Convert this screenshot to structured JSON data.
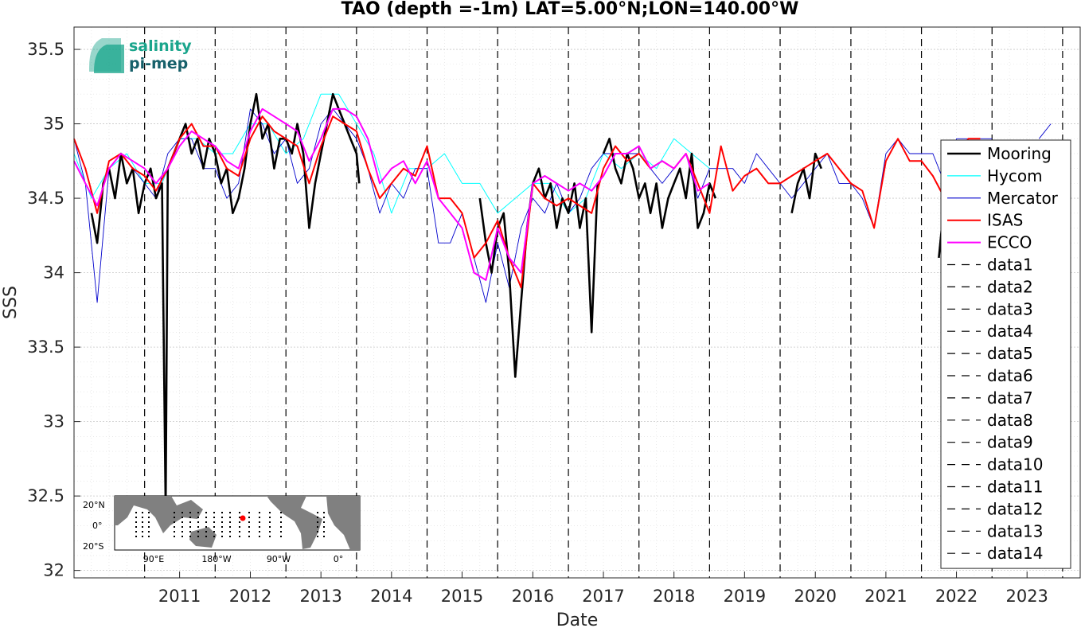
{
  "logo": {
    "line1": "salinity",
    "line2": "pi-mep",
    "color": "#1aa58c"
  },
  "chart_data": {
    "type": "line",
    "title": "TAO (depth =-1m) LAT=5.00°N;LON=140.00°W",
    "xlabel": "Date",
    "ylabel": "SSS",
    "xlim": [
      "2010-01-01",
      "2024-04-01"
    ],
    "ylim": [
      31.95,
      35.65
    ],
    "grid": true,
    "minor_grid": true,
    "x_ticks": [
      "2011",
      "2012",
      "2013",
      "2014",
      "2015",
      "2016",
      "2017",
      "2018",
      "2019",
      "2020",
      "2021",
      "2022",
      "2023"
    ],
    "y_ticks": [
      "32",
      "32.5",
      "33",
      "33.5",
      "34",
      "34.5",
      "35",
      "35.5"
    ],
    "legend_position": "right",
    "vertical_markers": [
      {
        "name": "data1",
        "x": "2011-01-01"
      },
      {
        "name": "data2",
        "x": "2012-01-01"
      },
      {
        "name": "data3",
        "x": "2013-01-01"
      },
      {
        "name": "data4",
        "x": "2014-01-01"
      },
      {
        "name": "data5",
        "x": "2015-01-01"
      },
      {
        "name": "data6",
        "x": "2016-01-01"
      },
      {
        "name": "data7",
        "x": "2017-01-01"
      },
      {
        "name": "data8",
        "x": "2018-01-01"
      },
      {
        "name": "data9",
        "x": "2019-01-01"
      },
      {
        "name": "data10",
        "x": "2020-01-01"
      },
      {
        "name": "data11",
        "x": "2021-01-01"
      },
      {
        "name": "data12",
        "x": "2022-01-01"
      },
      {
        "name": "data13",
        "x": "2023-01-01"
      },
      {
        "name": "data14",
        "x": "2024-01-01"
      }
    ],
    "series": [
      {
        "name": "Mooring",
        "color": "#000000",
        "width": 2.6,
        "x": [
          "2010-04-01",
          "2010-05-01",
          "2010-06-01",
          "2010-07-01",
          "2010-08-01",
          "2010-09-01",
          "2010-10-01",
          "2010-11-01",
          "2010-12-01",
          "2011-01-01",
          "2011-02-01",
          "2011-03-01",
          "2011-04-01",
          "2011-04-20",
          "2011-05-01",
          "2011-06-01",
          "2011-07-01",
          "2011-08-01",
          "2011-09-01",
          "2011-10-01",
          "2011-11-01",
          "2011-12-01",
          "2012-01-01",
          "2012-02-01",
          "2012-03-01",
          "2012-04-01",
          "2012-05-01",
          "2012-06-01",
          "2012-07-01",
          "2012-08-01",
          "2012-09-01",
          "2012-10-01",
          "2012-11-01",
          "2012-12-01",
          "2013-01-01",
          "2013-02-01",
          "2013-03-01",
          "2013-04-01",
          "2013-05-01",
          "2013-06-01",
          "2013-07-01",
          "2013-08-01",
          "2013-09-01",
          "2013-10-01",
          "2013-11-01",
          "2013-12-01",
          "2014-01-01",
          "2014-01-15",
          null,
          "2015-10-01",
          "2015-11-01",
          "2015-12-01",
          "2016-01-01",
          "2016-02-01",
          "2016-03-01",
          "2016-04-01",
          "2016-05-01",
          "2016-06-01",
          "2016-07-01",
          "2016-08-01",
          "2016-09-01",
          "2016-10-01",
          "2016-11-01",
          "2016-12-01",
          "2017-01-01",
          "2017-02-01",
          "2017-03-01",
          "2017-04-01",
          "2017-05-01",
          "2017-06-01",
          null,
          "2017-07-01",
          "2017-08-01",
          "2017-09-01",
          "2017-10-01",
          "2017-11-01",
          "2017-12-01",
          "2018-01-01",
          "2018-02-01",
          "2018-03-01",
          "2018-04-01",
          "2018-05-01",
          "2018-06-01",
          "2018-07-01",
          "2018-08-01",
          "2018-09-01",
          "2018-10-01",
          "2018-11-01",
          "2018-12-01",
          "2019-01-01",
          "2019-02-01",
          null,
          "2020-03-01",
          "2020-04-01",
          "2020-05-01",
          "2020-06-01",
          "2020-07-01",
          "2020-08-01",
          null,
          "2022-04-01",
          "2022-05-01",
          "2022-06-01"
        ],
        "y": [
          34.4,
          34.2,
          34.6,
          34.7,
          34.5,
          34.8,
          34.6,
          34.7,
          34.4,
          34.6,
          34.7,
          34.5,
          34.6,
          32.4,
          34.7,
          34.8,
          34.9,
          35.0,
          34.8,
          34.9,
          34.7,
          34.9,
          34.8,
          34.6,
          34.7,
          34.4,
          34.5,
          34.7,
          35.0,
          35.2,
          34.9,
          35.0,
          34.7,
          34.9,
          34.9,
          34.8,
          35.0,
          34.8,
          34.3,
          34.6,
          34.8,
          35.0,
          35.2,
          35.1,
          35.0,
          34.9,
          34.8,
          34.6,
          null,
          34.5,
          34.2,
          34.0,
          34.3,
          34.4,
          34.0,
          33.3,
          33.8,
          34.3,
          34.6,
          34.7,
          34.5,
          34.6,
          34.3,
          34.5,
          34.4,
          34.6,
          34.3,
          34.5,
          33.6,
          34.6,
          null,
          34.8,
          34.9,
          34.7,
          34.6,
          34.8,
          34.7,
          34.5,
          34.6,
          34.4,
          34.6,
          34.3,
          34.5,
          34.6,
          34.7,
          34.5,
          34.8,
          34.3,
          34.4,
          34.6,
          34.5,
          null,
          34.4,
          34.6,
          34.7,
          34.5,
          34.8,
          34.7,
          null,
          34.1,
          34.5,
          34.6
        ]
      },
      {
        "name": "Hycom",
        "color": "#00ffff",
        "width": 1,
        "x": [
          "2010-01-01",
          "2010-04-01",
          "2010-07-01",
          "2010-10-01",
          "2011-01-01",
          "2011-04-01",
          "2011-07-01",
          "2011-10-01",
          "2012-01-01",
          "2012-04-01",
          "2012-07-01",
          "2012-10-01",
          "2013-01-01",
          "2013-04-01",
          "2013-07-01",
          "2013-10-01",
          "2014-01-01",
          "2014-04-01",
          "2014-07-01",
          "2014-10-01",
          "2015-01-01",
          "2015-04-01",
          "2015-07-01",
          "2015-10-01",
          "2016-01-01",
          "2016-04-01",
          "2016-07-01",
          "2016-10-01",
          "2017-01-01",
          "2017-04-01",
          "2017-07-01",
          "2017-10-01",
          "2018-01-01",
          "2018-04-01",
          "2018-07-01",
          "2018-10-01",
          "2019-01-01"
        ],
        "y": [
          34.8,
          34.5,
          34.7,
          34.8,
          34.6,
          34.6,
          34.9,
          34.9,
          34.8,
          34.8,
          35.0,
          35.0,
          34.8,
          34.9,
          35.2,
          35.2,
          35.0,
          34.8,
          34.4,
          34.7,
          34.7,
          34.8,
          34.6,
          34.6,
          34.4,
          34.5,
          34.6,
          34.6,
          34.4,
          34.5,
          34.8,
          34.7,
          34.8,
          34.7,
          34.9,
          34.8,
          34.7
        ]
      },
      {
        "name": "Mercator",
        "color": "#0000cc",
        "width": 0.9,
        "x": [
          "2010-01-01",
          "2010-03-01",
          "2010-05-01",
          "2010-07-01",
          "2010-09-01",
          "2010-11-01",
          "2011-01-01",
          "2011-03-01",
          "2011-05-01",
          "2011-07-01",
          "2011-09-01",
          "2011-11-01",
          "2012-01-01",
          "2012-03-01",
          "2012-05-01",
          "2012-07-01",
          "2012-09-01",
          "2012-11-01",
          "2013-01-01",
          "2013-03-01",
          "2013-05-01",
          "2013-07-01",
          "2013-09-01",
          "2013-11-01",
          "2014-01-01",
          "2014-03-01",
          "2014-05-01",
          "2014-07-01",
          "2014-09-01",
          "2014-11-01",
          "2015-01-01",
          "2015-03-01",
          "2015-05-01",
          "2015-07-01",
          "2015-09-01",
          "2015-11-01",
          "2016-01-01",
          "2016-03-01",
          "2016-05-01",
          "2016-07-01",
          "2016-09-01",
          "2016-11-01",
          "2017-01-01",
          "2017-03-01",
          "2017-05-01",
          "2017-07-01",
          "2017-09-01",
          "2017-11-01",
          "2018-01-01",
          "2018-03-01",
          "2018-05-01",
          "2018-07-01",
          "2018-09-01",
          "2018-11-01",
          "2019-01-01",
          "2019-03-01",
          "2019-05-01",
          "2019-07-01",
          "2019-09-01",
          "2019-11-01",
          "2020-01-01",
          "2020-03-01",
          "2020-05-01",
          "2020-07-01",
          "2020-09-01",
          "2020-11-01",
          "2021-01-01",
          "2021-03-01",
          "2021-05-01",
          "2021-07-01",
          "2021-09-01",
          "2021-11-01",
          "2022-01-01",
          "2022-03-01",
          "2022-05-01",
          "2022-07-01",
          "2022-09-01",
          "2022-11-01",
          "2023-01-01",
          "2023-03-01",
          "2023-05-01",
          "2023-07-01",
          "2023-09-01",
          "2023-11-01"
        ],
        "y": [
          34.9,
          34.6,
          33.8,
          34.7,
          34.8,
          34.7,
          34.6,
          34.5,
          34.8,
          34.9,
          34.9,
          34.7,
          34.7,
          34.5,
          34.6,
          35.1,
          35.0,
          34.8,
          34.9,
          34.6,
          34.7,
          35.0,
          35.1,
          35.0,
          34.9,
          34.7,
          34.4,
          34.6,
          34.5,
          34.7,
          34.7,
          34.2,
          34.2,
          34.4,
          34.1,
          33.8,
          34.2,
          33.9,
          34.3,
          34.5,
          34.4,
          34.6,
          34.4,
          34.5,
          34.7,
          34.8,
          34.8,
          34.8,
          34.8,
          34.7,
          34.6,
          34.7,
          34.8,
          34.5,
          34.7,
          34.7,
          34.7,
          34.6,
          34.8,
          34.7,
          34.6,
          34.5,
          34.6,
          34.7,
          34.8,
          34.6,
          34.6,
          34.5,
          34.3,
          34.8,
          34.9,
          34.8,
          34.8,
          34.8,
          34.6,
          34.9,
          34.9,
          34.9,
          34.9,
          null,
          null,
          null,
          34.9,
          35.0
        ]
      },
      {
        "name": "ISAS",
        "color": "#ff0000",
        "width": 2,
        "x": [
          "2010-01-01",
          "2010-03-01",
          "2010-05-01",
          "2010-07-01",
          "2010-09-01",
          "2010-11-01",
          "2011-01-01",
          "2011-03-01",
          "2011-05-01",
          "2011-07-01",
          "2011-09-01",
          "2011-11-01",
          "2012-01-01",
          "2012-03-01",
          "2012-05-01",
          "2012-07-01",
          "2012-09-01",
          "2012-11-01",
          "2013-01-01",
          "2013-03-01",
          "2013-05-01",
          "2013-07-01",
          "2013-09-01",
          "2013-11-01",
          "2014-01-01",
          "2014-03-01",
          "2014-05-01",
          "2014-07-01",
          "2014-09-01",
          "2014-11-01",
          "2015-01-01",
          "2015-03-01",
          "2015-05-01",
          "2015-07-01",
          "2015-09-01",
          "2015-11-01",
          "2016-01-01",
          "2016-03-01",
          "2016-05-01",
          "2016-07-01",
          "2016-09-01",
          "2016-11-01",
          "2017-01-01",
          "2017-03-01",
          "2017-05-01",
          "2017-07-01",
          "2017-09-01",
          "2017-11-01",
          "2018-01-01",
          "2018-03-01",
          "2018-05-01",
          "2018-07-01",
          "2018-09-01",
          "2018-11-01",
          "2019-01-01",
          "2019-03-01",
          "2019-05-01",
          "2019-07-01",
          "2019-09-01",
          "2019-11-01",
          "2020-01-01",
          "2020-03-01",
          "2020-05-01",
          "2020-07-01",
          "2020-09-01",
          "2020-11-01",
          "2021-01-01",
          "2021-03-01",
          "2021-05-01",
          "2021-07-01",
          "2021-09-01",
          "2021-11-01",
          "2022-01-01",
          "2022-03-01",
          "2022-05-01",
          "2022-07-01",
          "2022-09-01",
          "2022-11-01"
        ],
        "y": [
          34.9,
          34.7,
          34.4,
          34.75,
          34.8,
          34.7,
          34.65,
          34.55,
          34.7,
          34.9,
          35.0,
          34.85,
          34.85,
          34.7,
          34.65,
          34.9,
          35.05,
          34.95,
          34.9,
          34.85,
          34.6,
          34.85,
          35.05,
          35.0,
          34.95,
          34.7,
          34.5,
          34.6,
          34.7,
          34.65,
          34.85,
          34.5,
          34.5,
          34.4,
          34.1,
          34.2,
          34.35,
          34.1,
          33.9,
          34.6,
          34.5,
          34.45,
          34.5,
          34.45,
          34.4,
          34.7,
          34.85,
          34.75,
          34.8,
          34.7,
          34.75,
          34.7,
          34.8,
          34.6,
          34.4,
          34.85,
          34.55,
          34.65,
          34.7,
          34.6,
          34.6,
          34.65,
          34.7,
          34.75,
          34.8,
          34.7,
          34.6,
          34.55,
          34.3,
          34.75,
          34.9,
          34.75,
          34.75,
          34.65,
          34.5,
          34.8,
          34.9,
          34.9
        ]
      },
      {
        "name": "ECCO",
        "color": "#ff00ff",
        "width": 2,
        "x": [
          "2010-01-01",
          "2010-03-01",
          "2010-05-01",
          "2010-07-01",
          "2010-09-01",
          "2010-11-01",
          "2011-01-01",
          "2011-03-01",
          "2011-05-01",
          "2011-07-01",
          "2011-09-01",
          "2011-11-01",
          "2012-01-01",
          "2012-03-01",
          "2012-05-01",
          "2012-07-01",
          "2012-09-01",
          "2012-11-01",
          "2013-01-01",
          "2013-03-01",
          "2013-05-01",
          "2013-07-01",
          "2013-09-01",
          "2013-11-01",
          "2014-01-01",
          "2014-03-01",
          "2014-05-01",
          "2014-07-01",
          "2014-09-01",
          "2014-11-01",
          "2015-01-01",
          "2015-03-01",
          "2015-05-01",
          "2015-07-01",
          "2015-09-01",
          "2015-11-01",
          "2016-01-01",
          "2016-03-01",
          "2016-05-01",
          "2016-07-01",
          "2016-09-01",
          "2016-11-01",
          "2017-01-01",
          "2017-03-01",
          "2017-05-01",
          "2017-07-01",
          "2017-09-01",
          "2017-11-01",
          "2018-01-01",
          "2018-03-01",
          "2018-05-01",
          "2018-07-01",
          "2018-09-01",
          "2018-11-01",
          "2018-12-31"
        ],
        "y": [
          34.75,
          34.6,
          34.45,
          34.7,
          34.8,
          34.75,
          34.7,
          34.6,
          34.7,
          34.85,
          34.95,
          34.9,
          34.85,
          34.75,
          34.7,
          34.95,
          35.1,
          35.05,
          35.0,
          34.95,
          34.75,
          34.9,
          35.1,
          35.1,
          35.05,
          34.9,
          34.6,
          34.7,
          34.75,
          34.6,
          34.75,
          34.5,
          34.4,
          34.3,
          34.0,
          33.95,
          34.3,
          34.1,
          34.0,
          34.6,
          34.65,
          34.6,
          34.55,
          34.6,
          34.55,
          34.65,
          34.8,
          34.8,
          34.85,
          34.7,
          34.75,
          34.7,
          34.8,
          34.55,
          34.6
        ]
      }
    ],
    "legend": [
      "Mooring",
      "Hycom",
      "Mercator",
      "ISAS",
      "ECCO",
      "data1",
      "data2",
      "data3",
      "data4",
      "data5",
      "data6",
      "data7",
      "data8",
      "data9",
      "data10",
      "data11",
      "data12",
      "data13",
      "data14"
    ],
    "inset_map": {
      "y_labels": [
        "20°N",
        "0°",
        "20°S"
      ],
      "x_labels": [
        "90°E",
        "180°W",
        "90°W",
        "0°"
      ],
      "marker_color": "#ff0000"
    }
  }
}
